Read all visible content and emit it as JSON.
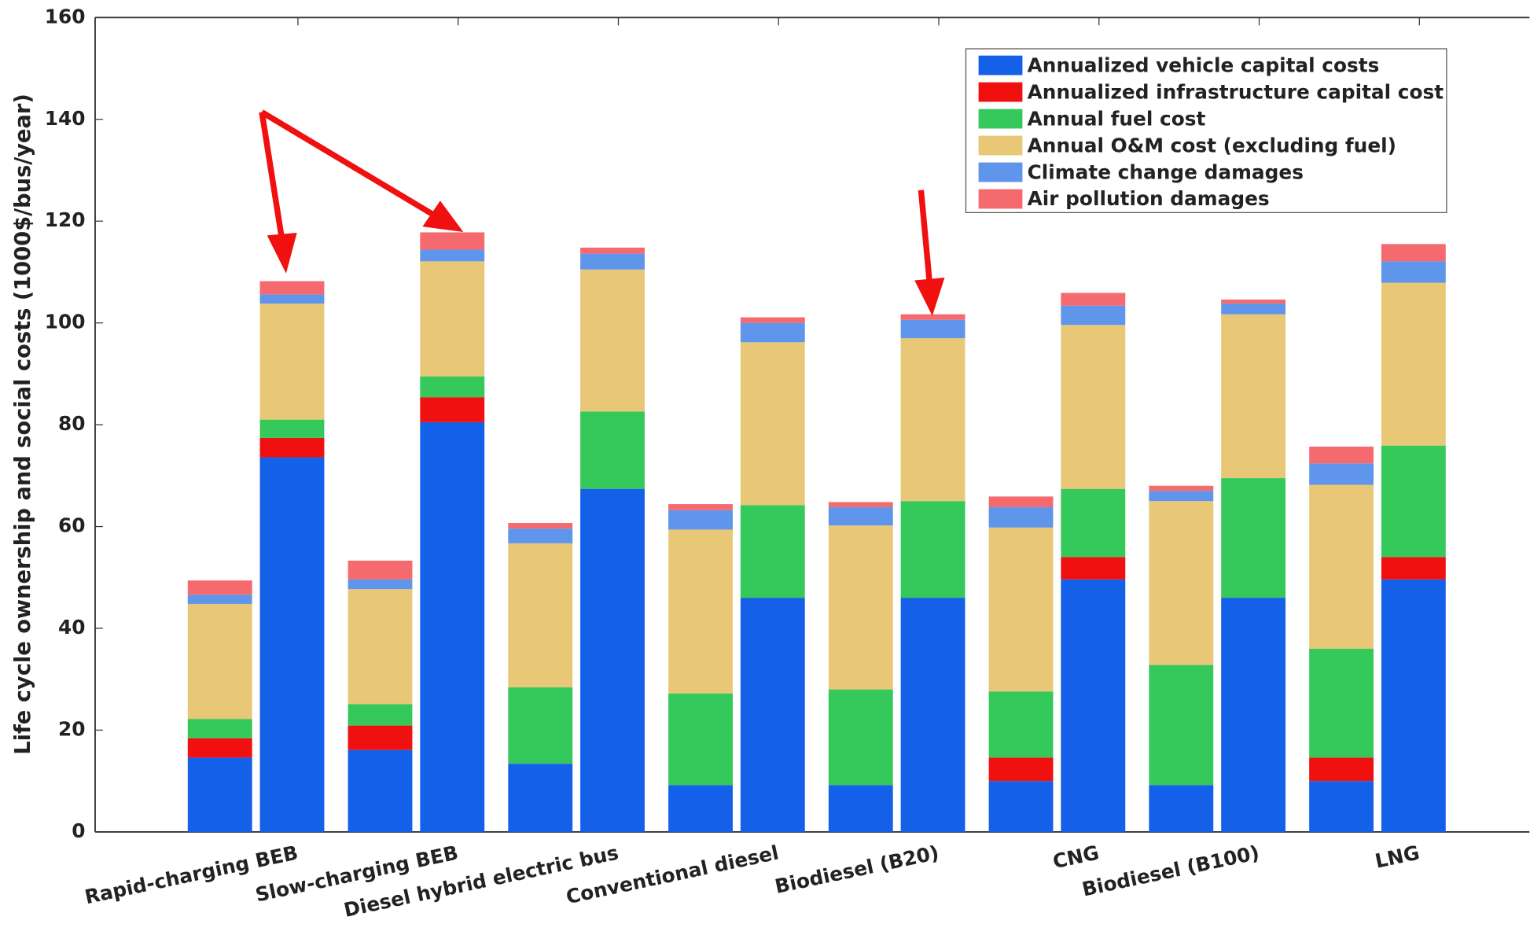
{
  "chart_data": {
    "type": "bar",
    "stacked": true,
    "y_label": "Life cycle ownership and social costs (1000$/bus/year)",
    "categories": [
      "Rapid-charging BEB",
      null,
      "Slow-charging BEB",
      null,
      "Diesel hybrid electric bus",
      null,
      "Conventional diesel",
      null,
      "Biodiesel (B20)",
      null,
      "CNG",
      null,
      "Biodiesel (B100)",
      null,
      "LNG",
      null
    ],
    "series": [
      {
        "name": "Annualized vehicle capital costs",
        "color": "#1560e8",
        "values": [
          14.6,
          73.6,
          16.1,
          80.5,
          13.4,
          67.4,
          9.2,
          46.0,
          9.2,
          46.0,
          10.0,
          49.6,
          9.2,
          46.0,
          10.0,
          49.6
        ]
      },
      {
        "name": "Annualized infrastructure capital cost",
        "color": "#f01010",
        "values": [
          3.8,
          3.8,
          4.8,
          4.9,
          0,
          0,
          0,
          0,
          0,
          0,
          4.6,
          4.4,
          0,
          0,
          4.6,
          4.4
        ]
      },
      {
        "name": "Annual fuel cost",
        "color": "#35c85a",
        "values": [
          3.8,
          3.6,
          4.2,
          4.1,
          15.0,
          15.2,
          18.0,
          18.2,
          18.8,
          19.0,
          13.0,
          13.4,
          23.6,
          23.5,
          21.4,
          21.9
        ]
      },
      {
        "name": "Annual O&M cost (excluding fuel)",
        "color": "#e8c777",
        "values": [
          22.6,
          22.8,
          22.6,
          22.6,
          28.3,
          27.9,
          32.2,
          32.0,
          32.2,
          32.0,
          32.2,
          32.2,
          32.2,
          32.2,
          32.2,
          32.0
        ]
      },
      {
        "name": "Climate change damages",
        "color": "#5f95ea",
        "values": [
          1.8,
          1.8,
          1.9,
          2.3,
          2.9,
          3.1,
          3.8,
          3.8,
          3.6,
          3.6,
          4.0,
          3.8,
          2.0,
          2.1,
          4.2,
          4.2
        ]
      },
      {
        "name": "Air pollution damages",
        "color": "#f46a6e",
        "values": [
          2.8,
          2.6,
          3.7,
          3.4,
          1.1,
          1.2,
          1.2,
          1.1,
          1.0,
          1.1,
          2.1,
          2.5,
          1.0,
          0.8,
          3.3,
          3.4
        ]
      }
    ],
    "ylim": [
      0,
      160
    ],
    "yticks": [
      0,
      20,
      40,
      60,
      80,
      100,
      120,
      140,
      160
    ],
    "grid": false,
    "legend": "upper right"
  }
}
